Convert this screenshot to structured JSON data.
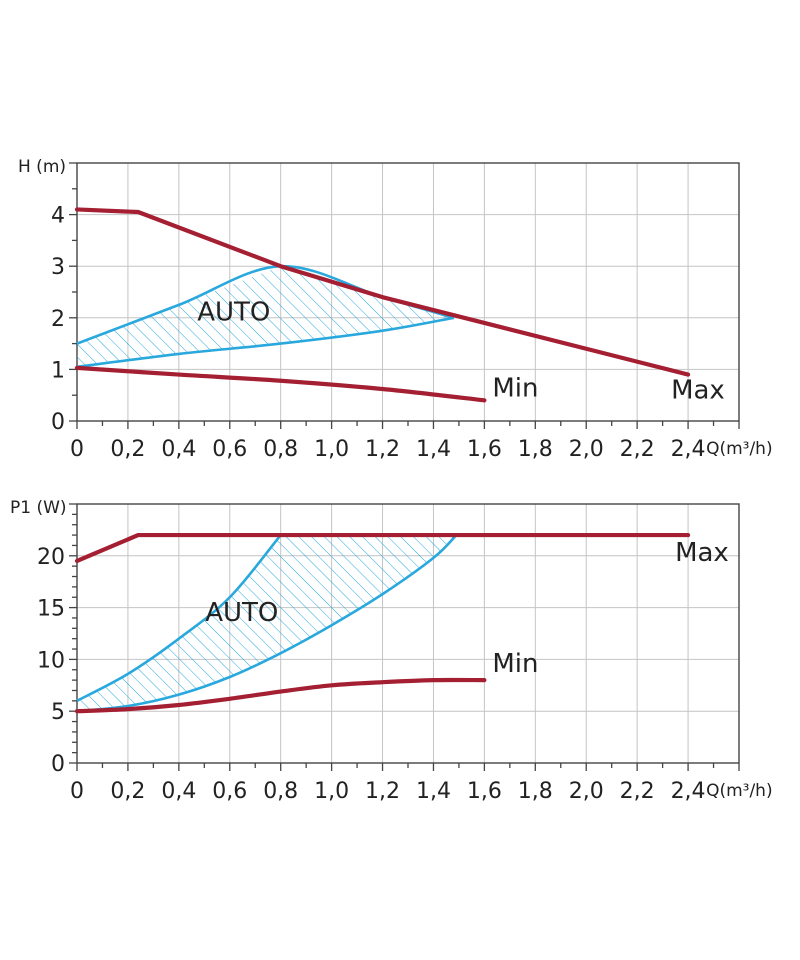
{
  "colors": {
    "max_curve": "#a51f33",
    "min_curve": "#a51f33",
    "auto_curve": "#29a8dd",
    "hatch": "#29a8dd",
    "grid": "#c4c4c4",
    "frame": "#444444"
  },
  "chart_data": [
    {
      "type": "line",
      "title": "",
      "xlabel": "Q(m³/h)",
      "ylabel": "H (m)",
      "xlim": [
        0,
        2.6
      ],
      "ylim": [
        0,
        5
      ],
      "x_ticks": [
        0,
        0.2,
        0.4,
        0.6,
        0.8,
        1.0,
        1.2,
        1.4,
        1.6,
        1.8,
        2.0,
        2.2,
        2.4
      ],
      "x_tick_labels": [
        "0",
        "0,2",
        "0,4",
        "0,6",
        "0,8",
        "1,0",
        "1,2",
        "1,4",
        "1,6",
        "1,8",
        "2,0",
        "2,2",
        "2,4"
      ],
      "y_ticks": [
        0,
        1,
        2,
        3,
        4
      ],
      "y_tick_labels": [
        "0",
        "1",
        "2",
        "3",
        "4"
      ],
      "grid": true,
      "series": [
        {
          "name": "Max",
          "label": "Max",
          "color_key": "max_curve",
          "points": [
            [
              0,
              4.1
            ],
            [
              0.24,
              4.05
            ],
            [
              0.8,
              3.0
            ],
            [
              1.2,
              2.4
            ],
            [
              1.6,
              1.9
            ],
            [
              2.0,
              1.4
            ],
            [
              2.4,
              0.9
            ]
          ]
        },
        {
          "name": "Min",
          "label": "Min",
          "color_key": "min_curve",
          "points": [
            [
              0,
              1.03
            ],
            [
              0.4,
              0.9
            ],
            [
              0.8,
              0.78
            ],
            [
              1.2,
              0.62
            ],
            [
              1.6,
              0.4
            ]
          ]
        }
      ],
      "auto_region": {
        "label": "AUTO",
        "upper": [
          [
            0,
            1.5
          ],
          [
            0.4,
            2.25
          ],
          [
            0.8,
            3.0
          ],
          [
            1.2,
            2.4
          ],
          [
            1.48,
            2.0
          ]
        ],
        "lower": [
          [
            0,
            1.05
          ],
          [
            0.4,
            1.3
          ],
          [
            0.8,
            1.5
          ],
          [
            1.2,
            1.75
          ],
          [
            1.48,
            2.0
          ]
        ]
      }
    },
    {
      "type": "line",
      "title": "",
      "xlabel": "Q(m³/h)",
      "ylabel": "P1 (W)",
      "xlim": [
        0,
        2.6
      ],
      "ylim": [
        0,
        25
      ],
      "x_ticks": [
        0,
        0.2,
        0.4,
        0.6,
        0.8,
        1.0,
        1.2,
        1.4,
        1.6,
        1.8,
        2.0,
        2.2,
        2.4
      ],
      "x_tick_labels": [
        "0",
        "0,2",
        "0,4",
        "0,6",
        "0,8",
        "1,0",
        "1,2",
        "1,4",
        "1,6",
        "1,8",
        "2,0",
        "2,2",
        "2,4"
      ],
      "y_ticks": [
        0,
        5,
        10,
        15,
        20
      ],
      "y_tick_labels": [
        "0",
        "5",
        "10",
        "15",
        "20"
      ],
      "grid": true,
      "series": [
        {
          "name": "Max",
          "label": "Max",
          "color_key": "max_curve",
          "points": [
            [
              0,
              19.5
            ],
            [
              0.24,
              22
            ],
            [
              0.8,
              22
            ],
            [
              1.6,
              22
            ],
            [
              2.4,
              22
            ]
          ]
        },
        {
          "name": "Min",
          "label": "Min",
          "color_key": "min_curve",
          "points": [
            [
              0,
              5.0
            ],
            [
              0.2,
              5.2
            ],
            [
              0.4,
              5.6
            ],
            [
              0.6,
              6.2
            ],
            [
              0.8,
              6.9
            ],
            [
              1.0,
              7.5
            ],
            [
              1.2,
              7.8
            ],
            [
              1.4,
              8.0
            ],
            [
              1.6,
              8.0
            ]
          ]
        }
      ],
      "auto_region": {
        "label": "AUTO",
        "upper": [
          [
            0,
            6.0
          ],
          [
            0.2,
            8.6
          ],
          [
            0.4,
            12.0
          ],
          [
            0.6,
            16.0
          ],
          [
            0.8,
            22.0
          ]
        ],
        "lower": [
          [
            0,
            5.0
          ],
          [
            0.2,
            5.5
          ],
          [
            0.4,
            6.6
          ],
          [
            0.6,
            8.3
          ],
          [
            0.8,
            10.6
          ],
          [
            1.0,
            13.3
          ],
          [
            1.2,
            16.3
          ],
          [
            1.4,
            19.8
          ],
          [
            1.49,
            22.0
          ]
        ]
      }
    }
  ]
}
